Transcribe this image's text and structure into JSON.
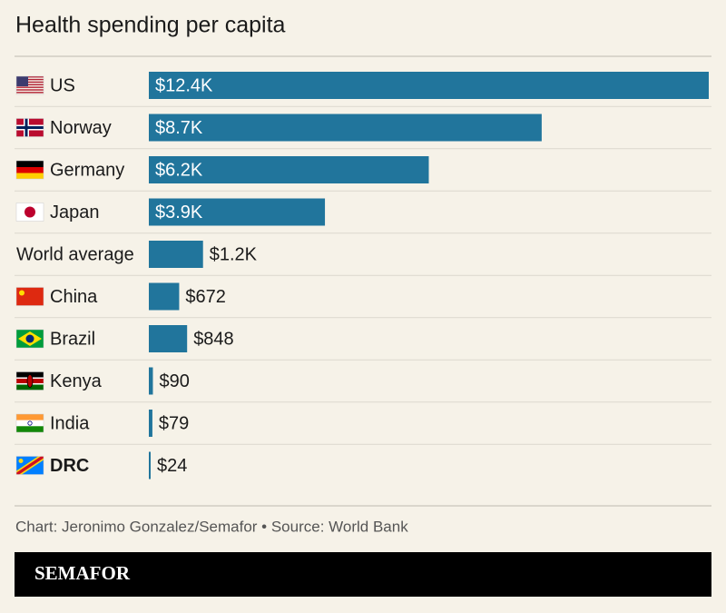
{
  "chart_data": {
    "type": "bar",
    "orientation": "horizontal",
    "title": "Health spending per capita",
    "categories": [
      "US",
      "Norway",
      "Germany",
      "Japan",
      "World average",
      "China",
      "Brazil",
      "Kenya",
      "India",
      "DRC"
    ],
    "values": [
      12400,
      8700,
      6200,
      3900,
      1200,
      672,
      848,
      90,
      79,
      24
    ],
    "value_labels": [
      "$12.4K",
      "$8.7K",
      "$6.2K",
      "$3.9K",
      "$1.2K",
      "$672",
      "$848",
      "$90",
      "$79",
      "$24"
    ],
    "color": "#21759c",
    "source": "Chart: Jeronimo Gonzalez/Semafor • Source: World Bank",
    "brand": "SEMAFOR"
  }
}
